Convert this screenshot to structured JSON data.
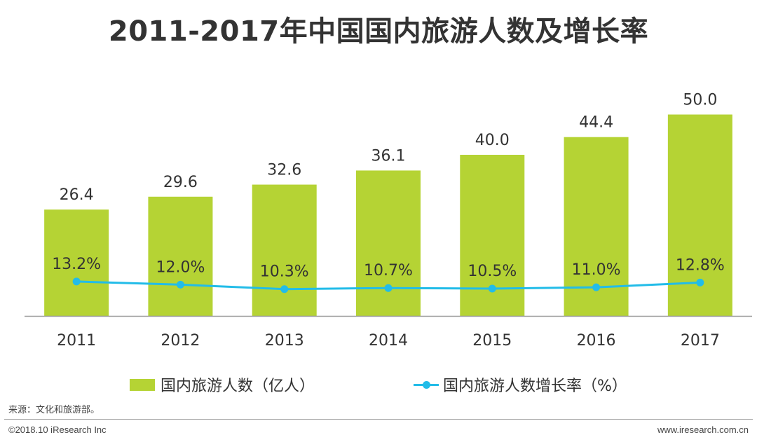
{
  "chart_data": {
    "type": "bar+line",
    "title": "2011-2017年中国国内旅游人数及增长率",
    "categories": [
      "2011",
      "2012",
      "2013",
      "2014",
      "2015",
      "2016",
      "2017"
    ],
    "series": [
      {
        "name": "国内旅游人数（亿人）",
        "kind": "bar",
        "values": [
          26.4,
          29.6,
          32.6,
          36.1,
          40.0,
          44.4,
          50.0
        ],
        "labels": [
          "26.4",
          "29.6",
          "32.6",
          "36.1",
          "40.0",
          "44.4",
          "50.0"
        ],
        "color": "#b5d334"
      },
      {
        "name": "国内旅游人数增长率（%）",
        "kind": "line",
        "values": [
          13.2,
          12.0,
          10.3,
          10.7,
          10.5,
          11.0,
          12.8
        ],
        "labels": [
          "13.2%",
          "12.0%",
          "10.3%",
          "10.7%",
          "10.5%",
          "11.0%",
          "12.8%"
        ],
        "color": "#22bce8"
      }
    ],
    "bar_axis_range": [
      0,
      60
    ],
    "line_axis_range": [
      0,
      110
    ],
    "legend_position": "bottom",
    "grid": false
  },
  "legend": {
    "bar_label": "国内旅游人数（亿人）",
    "line_label": "国内旅游人数增长率（%）"
  },
  "source": "来源：文化和旅游部。",
  "copyright": "©2018.10 iResearch Inc",
  "website": "www.iresearch.com.cn",
  "colors": {
    "bar": "#b5d334",
    "line": "#22bce8",
    "text": "#333333",
    "axis": "#9a9a9a"
  }
}
